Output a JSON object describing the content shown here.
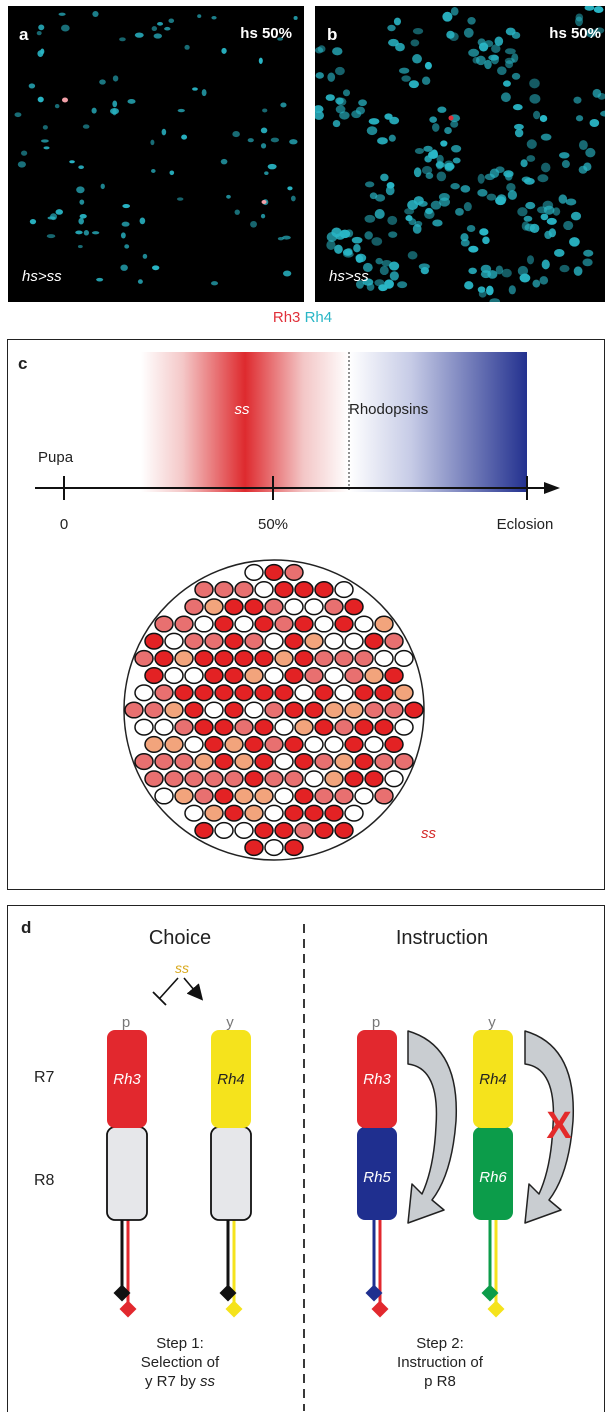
{
  "panel_a": {
    "letter": "a",
    "hs": "hs 50%",
    "genotype": "hs>ss"
  },
  "panel_b": {
    "letter": "b",
    "hs": "hs 50%",
    "genotype": "hs>ss"
  },
  "legend": {
    "rh3": "Rh3",
    "rh4": "Rh4",
    "rh3_color": "#e0303a",
    "rh4_color": "#29b6c6"
  },
  "panel_c": {
    "letter": "c",
    "ss_band": "ss",
    "rhodopsins": "Rhodopsins",
    "pupa": "Pupa",
    "tick0": "0",
    "tick50": "50%",
    "eclosion": "Eclosion",
    "ss_label": "ss"
  },
  "panel_d": {
    "letter": "d",
    "choice": "Choice",
    "instruction": "Instruction",
    "ss_top": "ss",
    "p1": "p",
    "y1": "y",
    "p2": "p",
    "y2": "y",
    "r7": "R7",
    "r8": "R8",
    "rh3a": "Rh3",
    "rh4a": "Rh4",
    "rh3b": "Rh3",
    "rh4b": "Rh4",
    "rh5": "Rh5",
    "rh6": "Rh6",
    "x_mark": "X",
    "step1_l1": "Step 1:",
    "step1_l2": "Selection of",
    "step1_l3": "y R7 by ",
    "step1_l3_it": "ss",
    "step2_l1": "Step 2:",
    "step2_l2": "Instruction of",
    "step2_l3": "p R8"
  }
}
